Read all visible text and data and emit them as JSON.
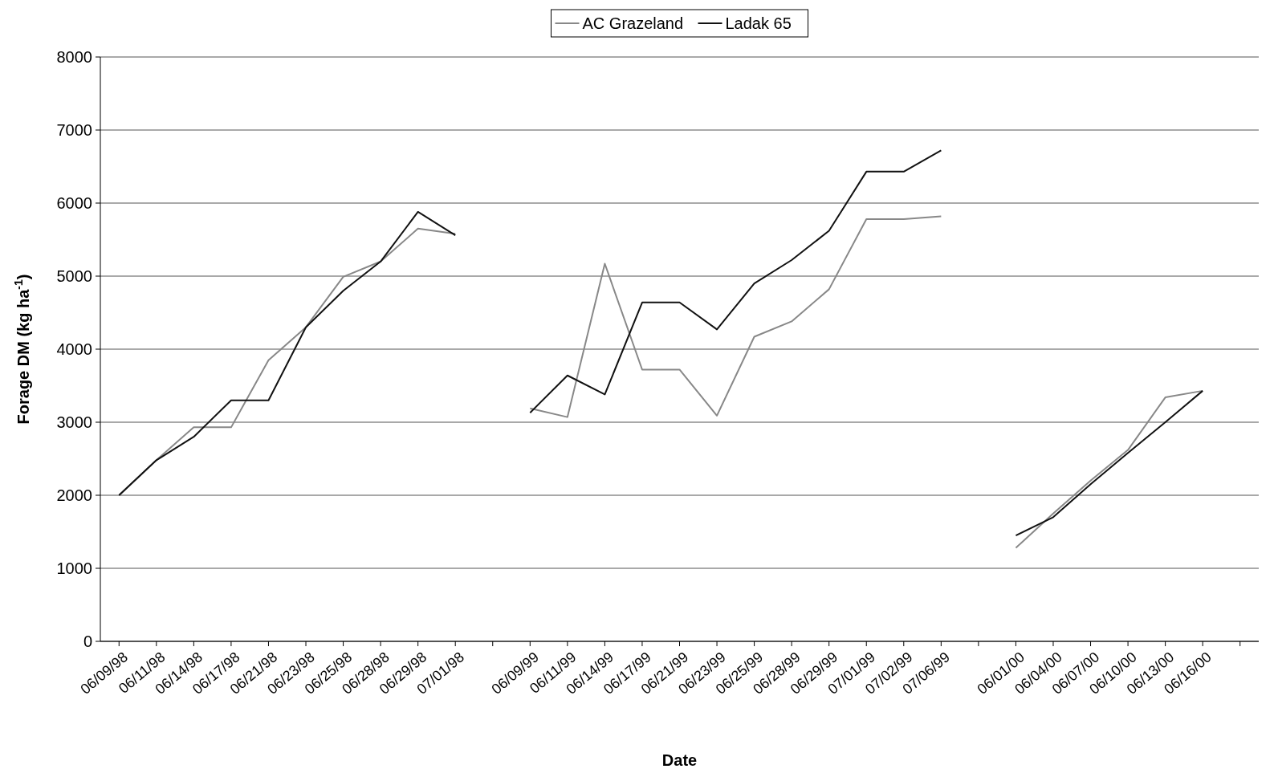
{
  "chart_data": {
    "type": "line",
    "xlabel": "Date",
    "ylabel": "Forage DM (kg ha$^{-1}$)",
    "categories": [
      "06/09/98",
      "06/11/98",
      "06/14/98",
      "06/17/98",
      "06/21/98",
      "06/23/98",
      "06/25/98",
      "06/28/98",
      "06/29/98",
      "07/01/98",
      null,
      "06/09/99",
      "06/11/99",
      "06/14/99",
      "06/17/99",
      "06/21/99",
      "06/23/99",
      "06/25/99",
      "06/28/99",
      "06/29/99",
      "07/01/99",
      "07/02/99",
      "07/06/99",
      null,
      "06/01/00",
      "06/04/00",
      "06/07/00",
      "06/10/00",
      "06/13/00",
      "06/16/00",
      null
    ],
    "series": [
      {
        "name": "AC Grazeland",
        "color": "#888888",
        "values": [
          2000,
          2480,
          2930,
          2930,
          3850,
          4300,
          4990,
          5200,
          5650,
          5580,
          null,
          3190,
          3070,
          5170,
          3720,
          3720,
          3090,
          4170,
          4380,
          4820,
          5780,
          5780,
          5820,
          null,
          1280,
          1750,
          2200,
          2620,
          3340,
          3430,
          null
        ]
      },
      {
        "name": "Ladak 65",
        "color": "#111111",
        "values": [
          2000,
          2480,
          2800,
          3300,
          3300,
          4300,
          4800,
          5200,
          5880,
          5560,
          null,
          3130,
          3640,
          3380,
          4640,
          4640,
          4270,
          4900,
          5220,
          5620,
          6430,
          6430,
          6720,
          null,
          1450,
          1700,
          2150,
          2580,
          3000,
          3430,
          null
        ]
      }
    ],
    "ylim": [
      0,
      8000
    ],
    "yticks": [
      0,
      1000,
      2000,
      3000,
      4000,
      5000,
      6000,
      7000,
      8000
    ],
    "grid": "y",
    "legend": "top",
    "marker": "none",
    "line_style": "solid"
  }
}
